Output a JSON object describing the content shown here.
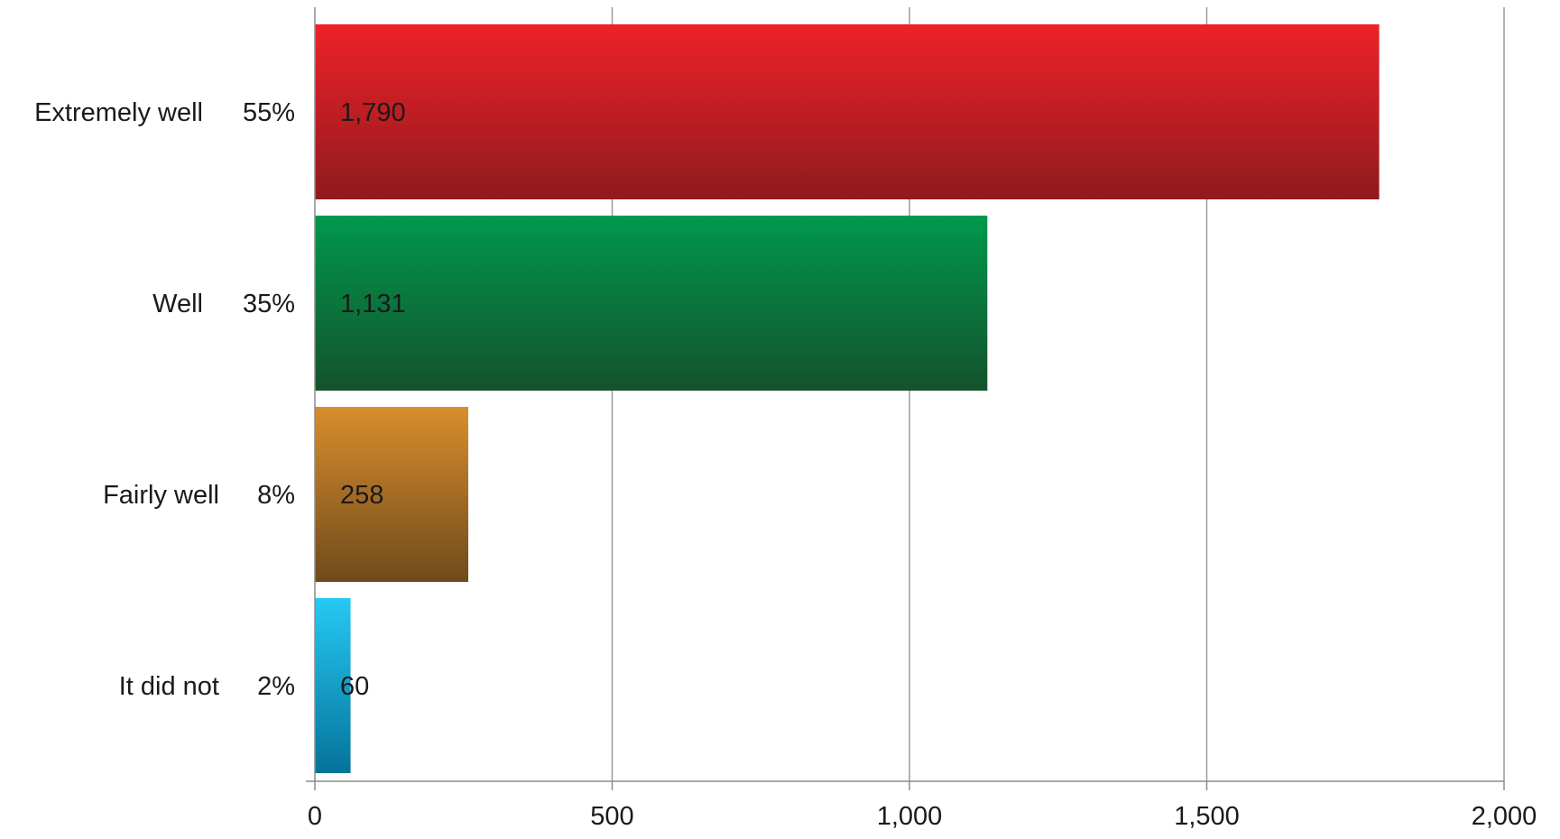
{
  "chart_data": {
    "type": "bar",
    "orientation": "horizontal",
    "categories": [
      "Extremely well",
      "Well",
      "Fairly well",
      "It did not"
    ],
    "percentages": [
      "55%",
      "35%",
      "8%",
      "2%"
    ],
    "values": [
      1790,
      1131,
      258,
      60
    ],
    "value_labels": [
      "1,790",
      "1,131",
      "258",
      "60"
    ],
    "xlim": [
      0,
      2000
    ],
    "x_ticks": [
      0,
      500,
      1000,
      1500,
      2000
    ],
    "x_tick_labels": [
      "0",
      "500",
      "1,000",
      "1,500",
      "2,000"
    ],
    "grid": "vertical",
    "legend": "none",
    "colors": [
      {
        "top": "#ee2229",
        "bottom": "#8f1a1e"
      },
      {
        "top": "#00994d",
        "bottom": "#14522c"
      },
      {
        "top": "#d98e2c",
        "bottom": "#6f4a1c"
      },
      {
        "top": "#26c9f4",
        "bottom": "#05739a"
      }
    ],
    "gridline_color": "#9a9a9a",
    "axis_color": "#8c8c8c"
  }
}
